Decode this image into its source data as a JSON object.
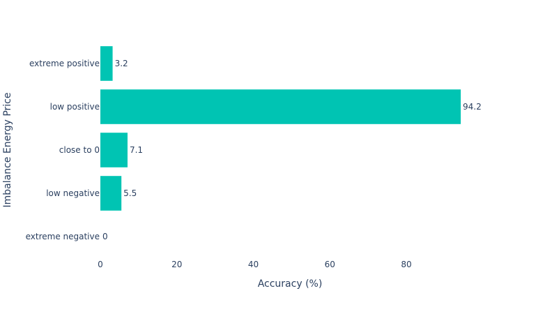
{
  "chart_data": {
    "type": "bar",
    "orientation": "horizontal",
    "categories": [
      "extreme negative",
      "low negative",
      "close to 0",
      "low positive",
      "extreme positive"
    ],
    "values": [
      0,
      5.5,
      7.1,
      94.2,
      3.2
    ],
    "data_labels": [
      "0",
      "5.5",
      "7.1",
      "94.2",
      "3.2"
    ],
    "xlabel": "Accuracy (%)",
    "ylabel": "Imbalance Energy Price",
    "xlim": [
      0,
      94.2
    ],
    "xticks": [
      0,
      20,
      40,
      60,
      80
    ],
    "grid": false,
    "bar_color": "#00c4b3"
  }
}
